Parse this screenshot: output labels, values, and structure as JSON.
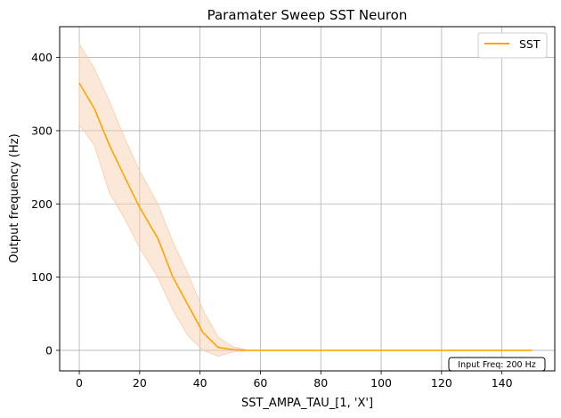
{
  "chart_data": {
    "type": "line",
    "title": "Paramater Sweep SST Neuron",
    "xlabel": "SST_AMPA_TAU_[1, 'X']",
    "ylabel": "Output frequency (Hz)",
    "xlim": [
      -6.5,
      157.5
    ],
    "ylim": [
      -28,
      442
    ],
    "xticks": [
      0,
      20,
      40,
      60,
      80,
      100,
      120,
      140
    ],
    "yticks": [
      0,
      100,
      200,
      300,
      400
    ],
    "xtick_labels": [
      "0",
      "20",
      "40",
      "60",
      "80",
      "100",
      "120",
      "140"
    ],
    "ytick_labels": [
      "0",
      "100",
      "200",
      "300",
      "400"
    ],
    "grid": true,
    "legend_position": "top-right",
    "series": [
      {
        "name": "SST",
        "color": "#ffa500",
        "band_color": "#f9cba9",
        "x": [
          0,
          5,
          10,
          15,
          20,
          26,
          31,
          36,
          41,
          46,
          51,
          56,
          61,
          150
        ],
        "values": [
          365,
          330,
          280,
          237,
          195,
          153,
          100,
          62,
          24,
          4,
          1,
          0,
          0,
          0
        ],
        "lower": [
          308,
          280,
          215,
          180,
          140,
          100,
          55,
          20,
          0,
          -8,
          -2,
          0,
          0,
          0
        ],
        "upper": [
          418,
          385,
          340,
          290,
          245,
          200,
          148,
          105,
          55,
          18,
          5,
          0,
          0,
          0
        ]
      }
    ],
    "annotation": "Input Freq: 200 Hz"
  }
}
